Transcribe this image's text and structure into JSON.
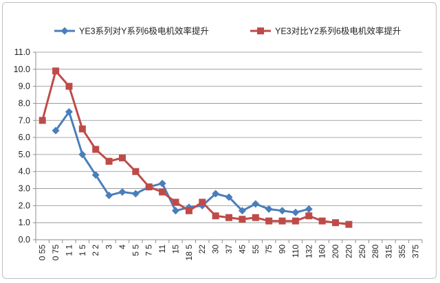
{
  "chart_data": {
    "type": "line",
    "title": "",
    "xlabel": "",
    "ylabel": "",
    "categories": [
      "0 55",
      "0 75",
      "1 1",
      "1 5",
      "2 2",
      "3",
      "4",
      "5 5",
      "7 5",
      "11",
      "15",
      "18 5",
      "22",
      "30",
      "37",
      "45",
      "55",
      "75",
      "90",
      "110",
      "132",
      "160",
      "200",
      "220",
      "250",
      "280",
      "315",
      "355",
      "375"
    ],
    "ylim": [
      0,
      11
    ],
    "yticks": [
      "0.0",
      "1.0",
      "2.0",
      "3.0",
      "4.0",
      "5.0",
      "6.0",
      "7.0",
      "8.0",
      "9.0",
      "10.0",
      "11.0"
    ],
    "grid": true,
    "legend_position": "top",
    "series": [
      {
        "name": "YE3系列对Y系列6极电机效率提升",
        "color": "#4a7ebb",
        "marker": "diamond",
        "values": [
          null,
          6.4,
          7.5,
          5.0,
          3.8,
          2.6,
          2.8,
          2.7,
          3.1,
          3.3,
          1.7,
          1.9,
          2.0,
          2.7,
          2.5,
          1.7,
          2.1,
          1.8,
          1.7,
          1.6,
          1.8,
          null,
          null,
          null,
          null,
          null,
          null,
          null,
          null
        ]
      },
      {
        "name": "YE3对比Y2系列6极电机效率提升",
        "color": "#be4b48",
        "marker": "square",
        "values": [
          7.0,
          9.9,
          9.0,
          6.5,
          5.3,
          4.6,
          4.8,
          4.0,
          3.1,
          2.8,
          2.2,
          1.7,
          2.2,
          1.4,
          1.3,
          1.2,
          1.3,
          1.1,
          1.1,
          1.1,
          1.4,
          1.1,
          1.0,
          0.9,
          null,
          null,
          null,
          null,
          null
        ]
      }
    ]
  }
}
